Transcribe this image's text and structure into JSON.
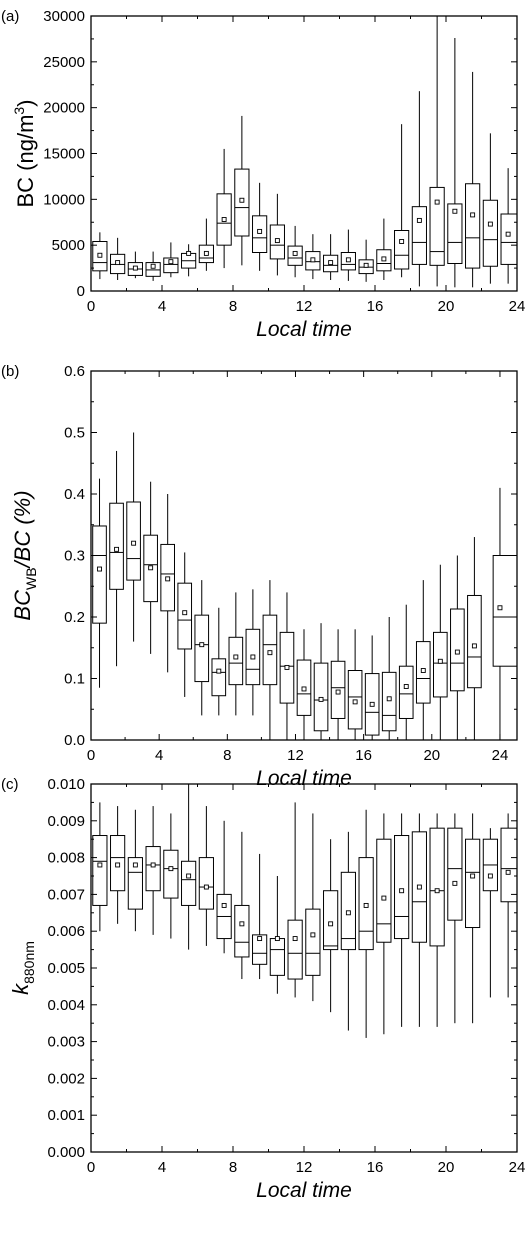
{
  "chart_data": [
    {
      "type": "box",
      "panel_label": "(a)",
      "xlabel": "Local time",
      "ylabel": "BC (ng/m³)",
      "ylabel_parts": {
        "main": "BC (ng/m",
        "sup": "3",
        "tail": ")"
      },
      "xlim": [
        0,
        24
      ],
      "ylim": [
        0,
        30000
      ],
      "xticks": [
        0,
        4,
        8,
        12,
        16,
        20,
        24
      ],
      "yticks": [
        0,
        5000,
        10000,
        15000,
        20000,
        25000,
        30000
      ],
      "x": [
        0.5,
        1.5,
        2.5,
        3.5,
        4.5,
        5.5,
        6.5,
        7.5,
        8.5,
        9.5,
        10.5,
        11.5,
        12.5,
        13.5,
        14.5,
        15.5,
        16.5,
        17.5,
        18.5,
        19.5,
        20.5,
        21.5,
        22.5,
        23.5
      ],
      "whisker_low": [
        1300,
        1200,
        1400,
        1100,
        1500,
        1600,
        2200,
        2500,
        2800,
        2200,
        1700,
        1500,
        1300,
        1200,
        1100,
        1000,
        1200,
        1500,
        500,
        500,
        400,
        400,
        800,
        800
      ],
      "q1": [
        2200,
        1900,
        1700,
        1600,
        2000,
        2500,
        3100,
        5000,
        6000,
        4200,
        3500,
        2800,
        2300,
        2100,
        2300,
        1900,
        2200,
        2400,
        2900,
        2800,
        3000,
        2500,
        2700,
        2900
      ],
      "median": [
        3100,
        2900,
        2400,
        2300,
        2900,
        3300,
        3600,
        7400,
        9100,
        5800,
        5000,
        3600,
        3200,
        2800,
        2900,
        2600,
        3000,
        3900,
        5300,
        4300,
        5300,
        5800,
        5600,
        5300
      ],
      "mean": [
        3900,
        3100,
        2500,
        2700,
        3200,
        4100,
        4100,
        7800,
        9900,
        6500,
        5500,
        4100,
        3400,
        3100,
        3400,
        2800,
        3500,
        5400,
        7700,
        9700,
        8700,
        8300,
        7300,
        6200
      ],
      "q3": [
        5400,
        4000,
        3100,
        3100,
        3600,
        4100,
        5000,
        10600,
        13300,
        8200,
        7200,
        4900,
        4300,
        3900,
        4200,
        3400,
        4500,
        6600,
        9200,
        11300,
        9500,
        11700,
        9900,
        8400
      ],
      "whisker_high": [
        6400,
        5800,
        4300,
        4300,
        5300,
        5100,
        7900,
        15500,
        19100,
        11800,
        10600,
        7100,
        6200,
        6200,
        6700,
        5600,
        7900,
        18200,
        21800,
        30000,
        27600,
        23900,
        17200,
        13400
      ],
      "last_box_right": 24.4
    },
    {
      "type": "box",
      "panel_label": "(b)",
      "xlabel": "Local time",
      "ylabel_parts": {
        "main": "BC",
        "sub": "WB",
        "tail": "/BC (%)"
      },
      "xlim": [
        0,
        25
      ],
      "ylim": [
        0,
        0.6
      ],
      "xticks": [
        0,
        4,
        8,
        12,
        16,
        20,
        24
      ],
      "yticks": [
        "0.0",
        "0.1",
        "0.2",
        "0.3",
        "0.4",
        "0.5",
        "0.6"
      ],
      "x": [
        0.5,
        1.5,
        2.5,
        3.5,
        4.5,
        5.5,
        6.5,
        7.5,
        8.5,
        9.5,
        10.5,
        11.5,
        12.5,
        13.5,
        14.5,
        15.5,
        16.5,
        17.5,
        18.5,
        19.5,
        20.5,
        21.5,
        22.5,
        24
      ],
      "whisker_low": [
        0.085,
        0.12,
        0.16,
        0.14,
        0.11,
        0.07,
        0.04,
        0.04,
        0.04,
        0.04,
        0.0,
        0.0,
        0.0,
        0.0,
        0.0,
        0.0,
        0.0,
        0.0,
        0.0,
        0.0,
        0.0,
        0.0,
        0.0,
        0.0
      ],
      "q1": [
        0.19,
        0.245,
        0.26,
        0.225,
        0.21,
        0.148,
        0.095,
        0.072,
        0.09,
        0.09,
        0.09,
        0.06,
        0.04,
        0.015,
        0.035,
        0.018,
        0.008,
        0.015,
        0.035,
        0.06,
        0.07,
        0.08,
        0.085,
        0.12
      ],
      "median": [
        0.3,
        0.305,
        0.295,
        0.285,
        0.27,
        0.195,
        0.155,
        0.11,
        0.125,
        0.115,
        0.155,
        0.12,
        0.075,
        0.065,
        0.085,
        0.07,
        0.045,
        0.04,
        0.075,
        0.1,
        0.125,
        0.125,
        0.135,
        0.2
      ],
      "mean": [
        0.278,
        0.31,
        0.32,
        0.28,
        0.262,
        0.207,
        0.155,
        0.112,
        0.135,
        0.135,
        0.142,
        0.118,
        0.083,
        0.066,
        0.078,
        0.062,
        0.058,
        0.067,
        0.087,
        0.113,
        0.128,
        0.143,
        0.153,
        0.215
      ],
      "q3": [
        0.348,
        0.385,
        0.387,
        0.333,
        0.318,
        0.255,
        0.203,
        0.132,
        0.167,
        0.18,
        0.203,
        0.175,
        0.13,
        0.125,
        0.128,
        0.113,
        0.108,
        0.11,
        0.12,
        0.16,
        0.175,
        0.213,
        0.235,
        0.3
      ],
      "whisker_high": [
        0.425,
        0.47,
        0.5,
        0.42,
        0.4,
        0.305,
        0.26,
        0.215,
        0.24,
        0.245,
        0.26,
        0.24,
        0.18,
        0.19,
        0.18,
        0.18,
        0.17,
        0.2,
        0.22,
        0.26,
        0.285,
        0.3,
        0.33,
        0.41
      ],
      "last_box_right": 25
    },
    {
      "type": "box",
      "panel_label": "(c)",
      "xlabel": "Local time",
      "ylabel_parts": {
        "main": "k",
        "sub": "880nm",
        "tail": ""
      },
      "xlim": [
        0,
        24
      ],
      "ylim": [
        0,
        0.01
      ],
      "xticks": [
        0,
        4,
        8,
        12,
        16,
        20,
        24
      ],
      "yticks": [
        "0.000",
        "0.001",
        "0.002",
        "0.003",
        "0.004",
        "0.005",
        "0.006",
        "0.007",
        "0.008",
        "0.009",
        "0.010"
      ],
      "x": [
        0.5,
        1.5,
        2.5,
        3.5,
        4.5,
        5.5,
        6.5,
        7.5,
        8.5,
        9.5,
        10.5,
        11.5,
        12.5,
        13.5,
        14.5,
        15.5,
        16.5,
        17.5,
        18.5,
        19.5,
        20.5,
        21.5,
        22.5,
        23.5
      ],
      "whisker_low": [
        0.006,
        0.0062,
        0.006,
        0.0059,
        0.0058,
        0.0055,
        0.0056,
        0.0054,
        0.0047,
        0.0047,
        0.0043,
        0.0042,
        0.0041,
        0.0038,
        0.0033,
        0.0031,
        0.0032,
        0.0034,
        0.0034,
        0.0034,
        0.0035,
        0.0035,
        0.0042,
        0.0042
      ],
      "q1": [
        0.0067,
        0.0071,
        0.0066,
        0.0071,
        0.0069,
        0.0067,
        0.0066,
        0.0058,
        0.0053,
        0.0051,
        0.0048,
        0.0047,
        0.0048,
        0.0055,
        0.0055,
        0.0055,
        0.0057,
        0.0058,
        0.0057,
        0.0056,
        0.0063,
        0.0061,
        0.0071,
        0.0068
      ],
      "median": [
        0.0079,
        0.008,
        0.0076,
        0.0078,
        0.0077,
        0.0074,
        0.0072,
        0.0064,
        0.0057,
        0.0054,
        0.0055,
        0.0054,
        0.0054,
        0.0056,
        0.0058,
        0.006,
        0.0062,
        0.0064,
        0.0068,
        0.0071,
        0.0077,
        0.0076,
        0.0078,
        0.0077
      ],
      "mean": [
        0.0078,
        0.0078,
        0.0078,
        0.0078,
        0.0077,
        0.0075,
        0.0072,
        0.0067,
        0.0062,
        0.0058,
        0.0058,
        0.0058,
        0.0059,
        0.0062,
        0.0065,
        0.0067,
        0.0069,
        0.0071,
        0.0072,
        0.0071,
        0.0073,
        0.0075,
        0.0075,
        0.0076
      ],
      "q3": [
        0.0086,
        0.0086,
        0.008,
        0.0083,
        0.0082,
        0.0079,
        0.008,
        0.007,
        0.0067,
        0.0059,
        0.0058,
        0.0063,
        0.0066,
        0.0071,
        0.0076,
        0.008,
        0.0085,
        0.0086,
        0.0087,
        0.0088,
        0.0088,
        0.0085,
        0.0085,
        0.0088
      ],
      "whisker_high": [
        0.0095,
        0.0094,
        0.0093,
        0.0094,
        0.0092,
        0.01,
        0.0094,
        0.009,
        0.0087,
        0.0081,
        0.0075,
        0.0095,
        0.0092,
        0.0085,
        0.0087,
        0.0093,
        0.0092,
        0.0092,
        0.0092,
        0.0092,
        0.0092,
        0.0092,
        0.0088,
        0.0092
      ],
      "last_box_right": 24
    }
  ]
}
